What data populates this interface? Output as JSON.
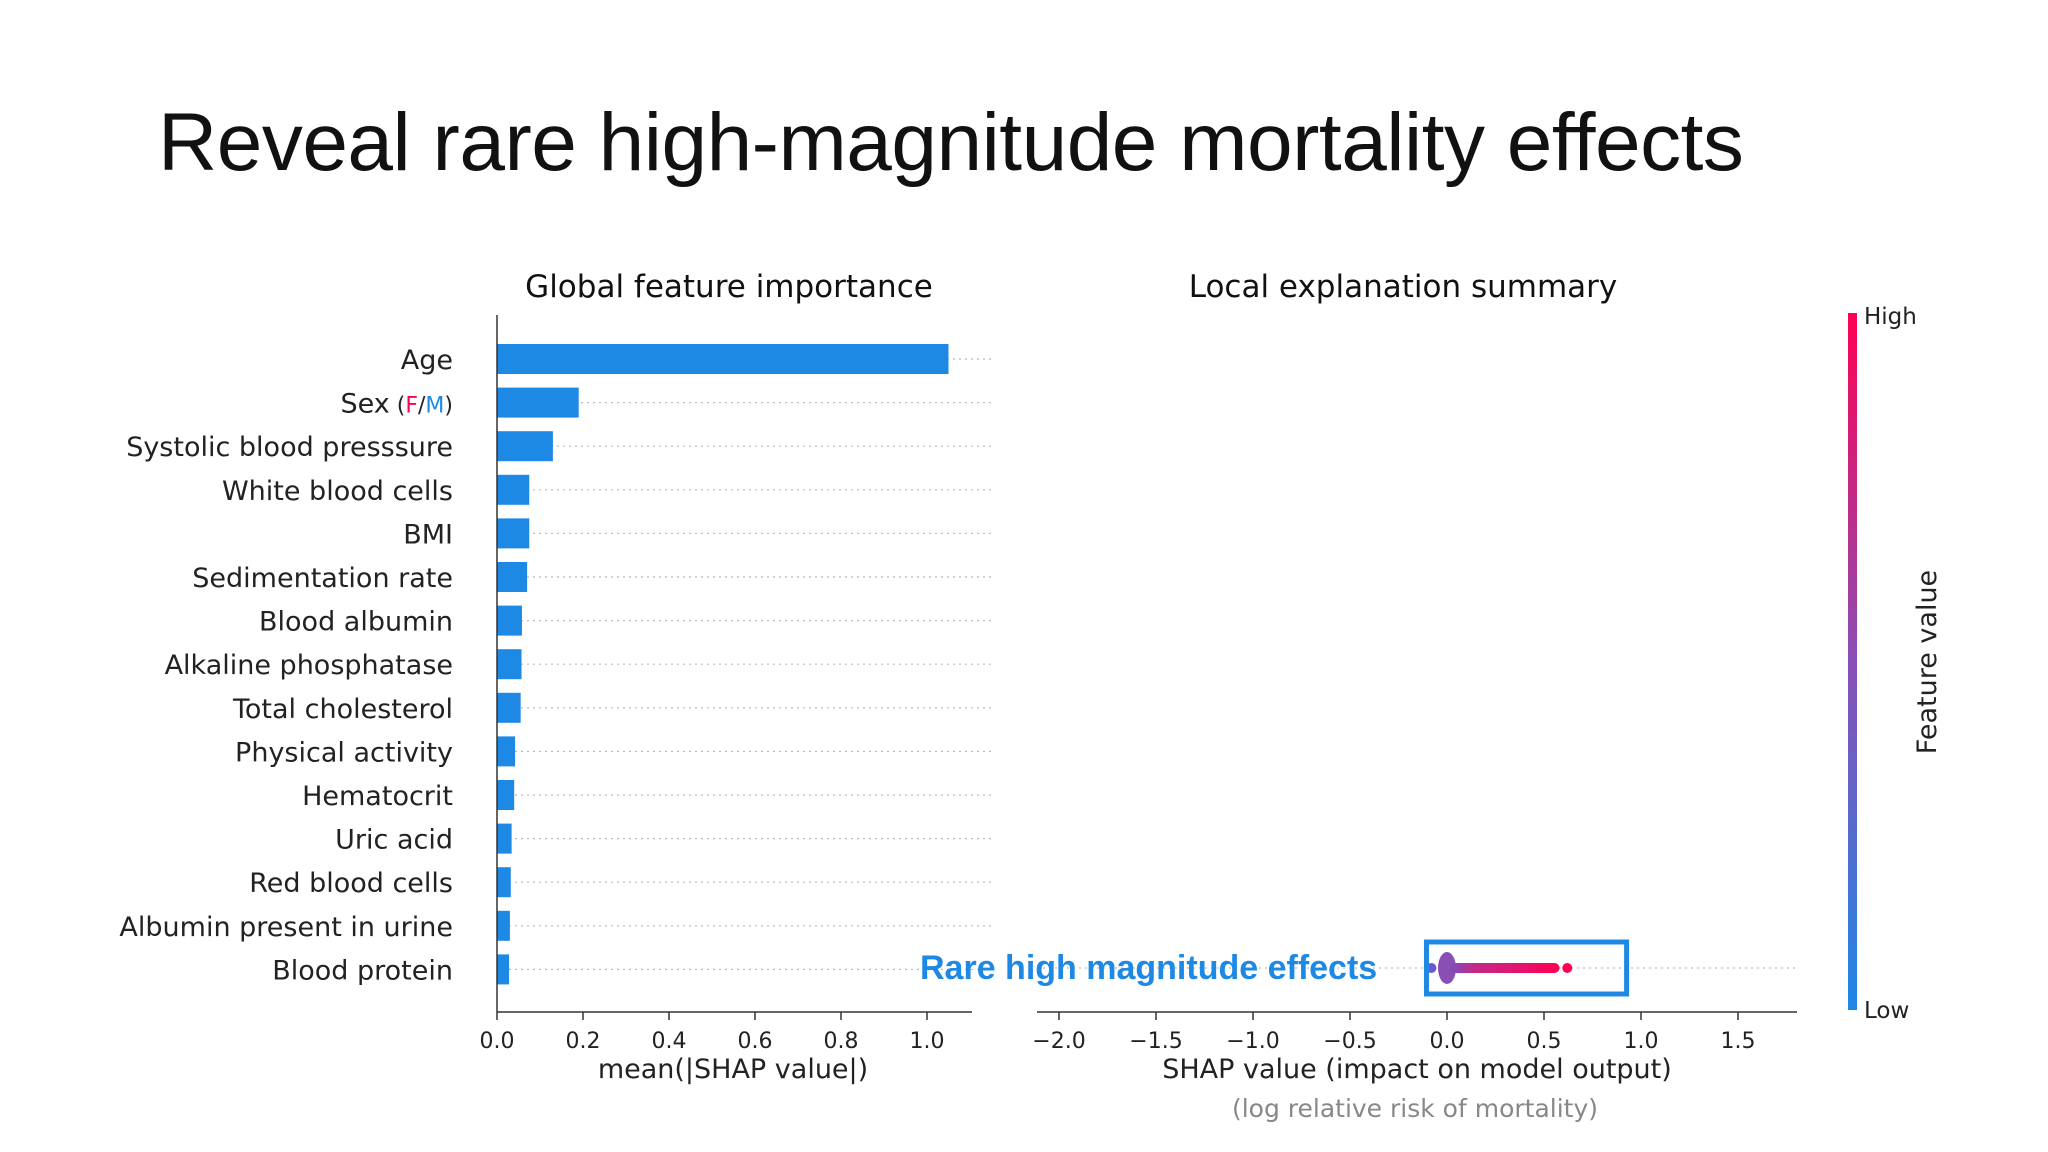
{
  "slide": {
    "title": "Reveal rare high-magnitude mortality effects"
  },
  "colors": {
    "bar": "#1e88e5",
    "low": "#1e88e5",
    "high": "#ff0052",
    "annotation": "#1e88e5",
    "sex_f": "#ff0052",
    "sex_m": "#1e88e5"
  },
  "chart_data": [
    {
      "type": "bar",
      "orientation": "horizontal",
      "title": "Global feature importance",
      "xlabel": "mean(|SHAP value|)",
      "xlim": [
        0.0,
        1.1
      ],
      "xticks": [
        "0.0",
        "0.2",
        "0.4",
        "0.6",
        "0.8",
        "1.0"
      ],
      "xtick_values": [
        0.0,
        0.2,
        0.4,
        0.6,
        0.8,
        1.0
      ],
      "grid": "dotted horizontal",
      "categories": [
        "Age",
        "Sex",
        "Systolic blood presssure",
        "White blood cells",
        "BMI",
        "Sedimentation rate",
        "Blood albumin",
        "Alkaline phosphatase",
        "Total cholesterol",
        "Physical activity",
        "Hematocrit",
        "Uric acid",
        "Red blood cells",
        "Albumin present in urine",
        "Blood protein"
      ],
      "sex_legend": {
        "open": "(",
        "f": "F",
        "slash": "/",
        "m": "M",
        "close": ")"
      },
      "values": [
        1.05,
        0.19,
        0.13,
        0.075,
        0.075,
        0.07,
        0.058,
        0.057,
        0.055,
        0.042,
        0.04,
        0.034,
        0.032,
        0.03,
        0.028
      ]
    },
    {
      "type": "scatter",
      "title": "Local explanation summary",
      "xlabel": "SHAP value (impact on model output)",
      "xsublabel": "(log relative risk of mortality)",
      "xlim": [
        -2.1,
        1.85
      ],
      "xticks": [
        "−2.0",
        "−1.5",
        "−1.0",
        "−0.5",
        "0.0",
        "0.5",
        "1.0",
        "1.5"
      ],
      "xtick_values": [
        -2.0,
        -1.5,
        -1.0,
        -0.5,
        0.0,
        0.5,
        1.0,
        1.5
      ],
      "visible_row": "Blood protein",
      "points_range": [
        -0.08,
        0.62
      ],
      "annotation": "Rare high magnitude effects",
      "highlight_range": [
        -0.08,
        0.9
      ],
      "colorbar": {
        "label": "Feature value",
        "high": "High",
        "low": "Low"
      }
    }
  ]
}
